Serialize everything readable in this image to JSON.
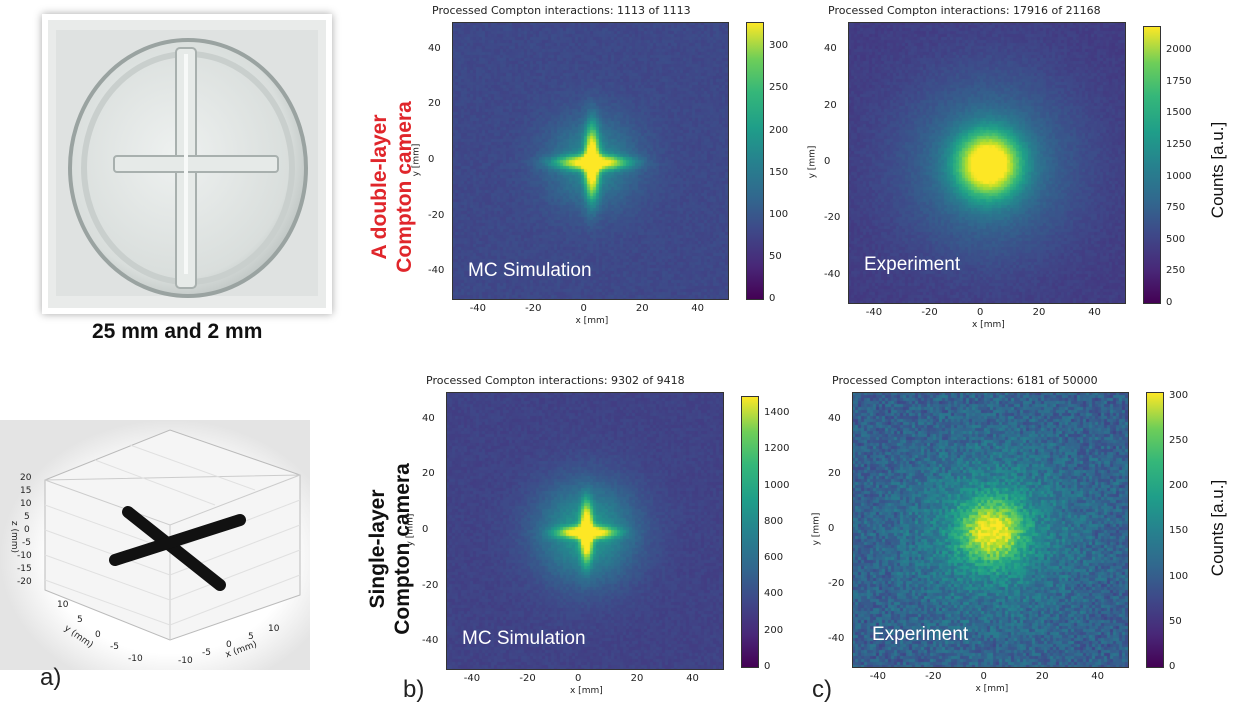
{
  "caption": "25 mm and 2 mm",
  "row_labels": {
    "double": [
      "A double-layer",
      "Compton camera"
    ],
    "single": [
      "Single-layer",
      "Compton camera"
    ]
  },
  "panel_letters": [
    "a)",
    "b)",
    "c)"
  ],
  "colorbar_label": "Counts [a.u.]",
  "colors": {
    "double_layer_label": "#e0262b",
    "single_layer_label": "#111111",
    "colormap": "viridis"
  },
  "phantom_3d": {
    "z_label": "z (mm)",
    "y_label": "y (mm)",
    "x_label": "x (mm)",
    "z_ticks": [
      "20",
      "15",
      "10",
      "5",
      "0",
      "-5",
      "-10",
      "-15",
      "-20"
    ],
    "y_ticks": [
      "10",
      "5",
      "0",
      "-5",
      "-10"
    ],
    "x_ticks": [
      "-10",
      "-5",
      "0",
      "5",
      "10"
    ]
  },
  "chart_data": [
    {
      "type": "heatmap",
      "title": "Processed Compton interactions: 1113 of 1113",
      "label": "MC Simulation",
      "xlabel": "x [mm]",
      "ylabel": "y [mm]",
      "xlim": [
        -50,
        50
      ],
      "ylim": [
        -50,
        50
      ],
      "xticks": [
        "-40",
        "-20",
        "0",
        "20",
        "40"
      ],
      "yticks": [
        "40",
        "20",
        "0",
        "-20",
        "-40"
      ],
      "colorbar_ticks": [
        "0",
        "50",
        "100",
        "150",
        "200",
        "250",
        "300"
      ],
      "colorbar_max": 330,
      "peak_xy": [
        0,
        0
      ],
      "background_level": 0.22,
      "spread": "narrow cross"
    },
    {
      "type": "heatmap",
      "title": "Processed Compton interactions: 17916 of 21168",
      "label": "Experiment",
      "xlabel": "x [mm]",
      "ylabel": "y [mm]",
      "xlim": [
        -50,
        50
      ],
      "ylim": [
        -50,
        50
      ],
      "xticks": [
        "-40",
        "-20",
        "0",
        "20",
        "40"
      ],
      "yticks": [
        "40",
        "20",
        "0",
        "-20",
        "-40"
      ],
      "colorbar_ticks": [
        "0",
        "250",
        "500",
        "750",
        "1000",
        "1250",
        "1500",
        "1750",
        "2000"
      ],
      "colorbar_max": 2200,
      "peak_xy": [
        0,
        0
      ],
      "background_level": 0.18,
      "spread": "broad blob"
    },
    {
      "type": "heatmap",
      "title": "Processed Compton interactions: 9302 of 9418",
      "label": "MC Simulation",
      "xlabel": "x [mm]",
      "ylabel": "y [mm]",
      "xlim": [
        -50,
        50
      ],
      "ylim": [
        -50,
        50
      ],
      "xticks": [
        "-40",
        "-20",
        "0",
        "20",
        "40"
      ],
      "yticks": [
        "40",
        "20",
        "0",
        "-20",
        "-40"
      ],
      "colorbar_ticks": [
        "0",
        "200",
        "400",
        "600",
        "800",
        "1000",
        "1200",
        "1400"
      ],
      "colorbar_max": 1500,
      "peak_xy": [
        0,
        0
      ],
      "background_level": 0.2,
      "spread": "sharp cross with halo"
    },
    {
      "type": "heatmap",
      "title": "Processed Compton interactions: 6181 of 50000",
      "label": "Experiment",
      "xlabel": "x [mm]",
      "ylabel": "y [mm]",
      "xlim": [
        -50,
        50
      ],
      "ylim": [
        -50,
        50
      ],
      "xticks": [
        "-40",
        "-20",
        "0",
        "20",
        "40"
      ],
      "yticks": [
        "40",
        "20",
        "0",
        "-20",
        "-40"
      ],
      "colorbar_ticks": [
        "0",
        "50",
        "100",
        "150",
        "200",
        "250",
        "300"
      ],
      "colorbar_max": 305,
      "peak_xy": [
        0,
        0
      ],
      "background_level": 0.3,
      "spread": "noisy broad blob"
    }
  ]
}
